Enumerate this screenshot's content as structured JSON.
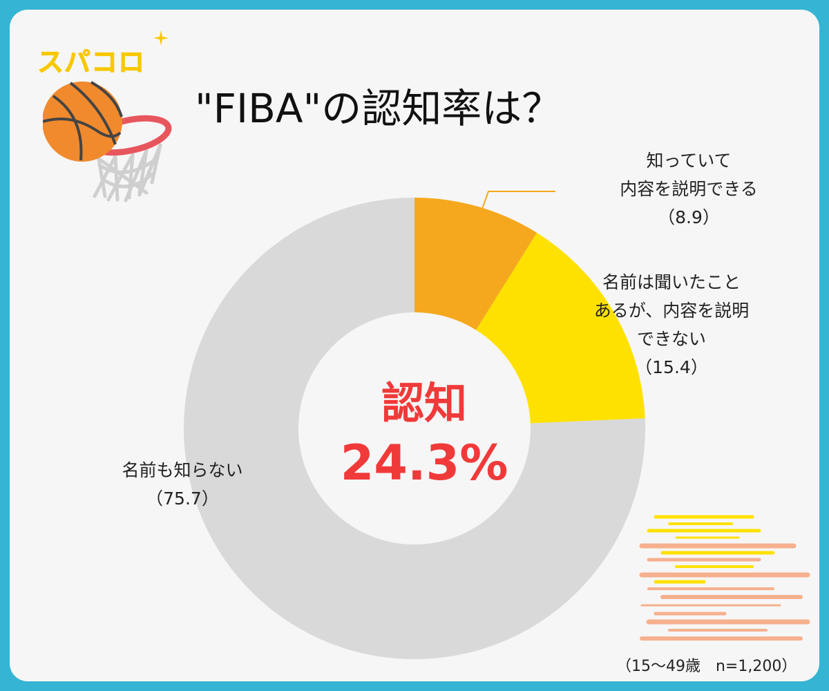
{
  "brand": {
    "logo_text": "スパコロ"
  },
  "title": "\"FIBA\"の認知率は？",
  "center": {
    "label": "認知",
    "value": "24.3%"
  },
  "footnote": "（15〜49歳　n=1,200）",
  "colors": {
    "frame": "#36b4d4",
    "card": "#f6f6f6",
    "accent_red": "#f03a3a",
    "logo_yellow": "#f7c800"
  },
  "chart_data": {
    "type": "pie",
    "donut": true,
    "title": "\"FIBA\"の認知率は？",
    "slices": [
      {
        "label_lines": [
          "知っていて",
          "内容を説明できる"
        ],
        "value_text": "（8.9）",
        "value": 8.9,
        "color": "#f5a81d"
      },
      {
        "label_lines": [
          "名前は聞いたこと",
          "あるが、内容を説明",
          "できない"
        ],
        "value_text": "（15.4）",
        "value": 15.4,
        "color": "#ffe100"
      },
      {
        "label_lines": [
          "名前も知らない"
        ],
        "value_text": "（75.7）",
        "value": 75.7,
        "color": "#d9d9d9"
      }
    ]
  }
}
